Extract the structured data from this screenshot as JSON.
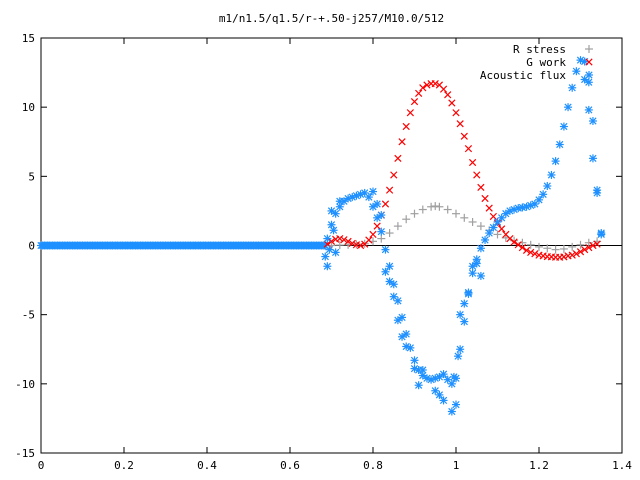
{
  "chart_data": {
    "type": "scatter",
    "title": "m1/n1.5/q1.5/r-+.50-j257/M10.0/512",
    "xlabel": "",
    "ylabel": "",
    "xlim": [
      0,
      1.4
    ],
    "ylim": [
      -15,
      15
    ],
    "x_ticks": [
      0,
      0.2,
      0.4,
      0.6,
      0.8,
      1,
      1.2,
      1.4
    ],
    "y_ticks": [
      -15,
      -10,
      -5,
      0,
      5,
      10,
      15
    ],
    "x_tick_labels": [
      "0",
      "0.2",
      "0.4",
      "0.6",
      "0.8",
      "1",
      "1.2",
      "1.4"
    ],
    "y_tick_labels": [
      "-15",
      "-10",
      "-5",
      "0",
      "5",
      "10",
      "15"
    ],
    "grid": false,
    "legend_position": "top-right",
    "series": [
      {
        "name": "R stress",
        "marker": "+",
        "color": "#a0a0a0",
        "points": [
          [
            0.7,
            0.0
          ],
          [
            0.72,
            0.03
          ],
          [
            0.74,
            0.05
          ],
          [
            0.76,
            0.08
          ],
          [
            0.78,
            0.13
          ],
          [
            0.8,
            0.3
          ],
          [
            0.82,
            0.5
          ],
          [
            0.84,
            0.9
          ],
          [
            0.86,
            1.4
          ],
          [
            0.88,
            1.9
          ],
          [
            0.9,
            2.3
          ],
          [
            0.92,
            2.6
          ],
          [
            0.94,
            2.8
          ],
          [
            0.95,
            2.85
          ],
          [
            0.96,
            2.8
          ],
          [
            0.98,
            2.6
          ],
          [
            1.0,
            2.3
          ],
          [
            1.02,
            2.0
          ],
          [
            1.04,
            1.7
          ],
          [
            1.06,
            1.4
          ],
          [
            1.08,
            1.1
          ],
          [
            1.1,
            0.8
          ],
          [
            1.12,
            0.55
          ],
          [
            1.14,
            0.35
          ],
          [
            1.16,
            0.2
          ],
          [
            1.18,
            0.05
          ],
          [
            1.2,
            -0.1
          ],
          [
            1.22,
            -0.2
          ],
          [
            1.24,
            -0.3
          ],
          [
            1.26,
            -0.25
          ],
          [
            1.28,
            -0.1
          ],
          [
            1.3,
            0.05
          ],
          [
            1.32,
            0.2
          ],
          [
            1.34,
            0.3
          ]
        ]
      },
      {
        "name": "G work",
        "marker": "x",
        "color": "#ff0000",
        "points": [
          [
            0.69,
            0.1
          ],
          [
            0.7,
            0.3
          ],
          [
            0.71,
            0.45
          ],
          [
            0.72,
            0.5
          ],
          [
            0.73,
            0.42
          ],
          [
            0.74,
            0.3
          ],
          [
            0.75,
            0.15
          ],
          [
            0.76,
            0.05
          ],
          [
            0.77,
            0.0
          ],
          [
            0.78,
            0.1
          ],
          [
            0.79,
            0.4
          ],
          [
            0.8,
            0.8
          ],
          [
            0.81,
            1.4
          ],
          [
            0.82,
            2.2
          ],
          [
            0.83,
            3.0
          ],
          [
            0.84,
            4.0
          ],
          [
            0.85,
            5.1
          ],
          [
            0.86,
            6.3
          ],
          [
            0.87,
            7.5
          ],
          [
            0.88,
            8.6
          ],
          [
            0.89,
            9.6
          ],
          [
            0.9,
            10.4
          ],
          [
            0.91,
            11.0
          ],
          [
            0.92,
            11.4
          ],
          [
            0.93,
            11.6
          ],
          [
            0.94,
            11.7
          ],
          [
            0.95,
            11.7
          ],
          [
            0.96,
            11.6
          ],
          [
            0.97,
            11.3
          ],
          [
            0.98,
            10.9
          ],
          [
            0.99,
            10.3
          ],
          [
            1.0,
            9.6
          ],
          [
            1.01,
            8.8
          ],
          [
            1.02,
            7.9
          ],
          [
            1.03,
            7.0
          ],
          [
            1.04,
            6.0
          ],
          [
            1.05,
            5.1
          ],
          [
            1.06,
            4.2
          ],
          [
            1.07,
            3.4
          ],
          [
            1.08,
            2.7
          ],
          [
            1.09,
            2.1
          ],
          [
            1.1,
            1.6
          ],
          [
            1.11,
            1.2
          ],
          [
            1.12,
            0.8
          ],
          [
            1.13,
            0.5
          ],
          [
            1.14,
            0.25
          ],
          [
            1.15,
            0.05
          ],
          [
            1.16,
            -0.15
          ],
          [
            1.17,
            -0.35
          ],
          [
            1.18,
            -0.5
          ],
          [
            1.19,
            -0.6
          ],
          [
            1.2,
            -0.7
          ],
          [
            1.21,
            -0.75
          ],
          [
            1.22,
            -0.8
          ],
          [
            1.23,
            -0.82
          ],
          [
            1.24,
            -0.85
          ],
          [
            1.25,
            -0.85
          ],
          [
            1.26,
            -0.82
          ],
          [
            1.27,
            -0.75
          ],
          [
            1.28,
            -0.7
          ],
          [
            1.29,
            -0.6
          ],
          [
            1.3,
            -0.45
          ],
          [
            1.31,
            -0.3
          ],
          [
            1.32,
            -0.15
          ],
          [
            1.33,
            0.0
          ],
          [
            1.34,
            0.1
          ]
        ]
      },
      {
        "name": "Acoustic flux",
        "marker": "*",
        "color": "#1e90ff",
        "points": [
          [
            0.69,
            0.5
          ],
          [
            0.7,
            1.5
          ],
          [
            0.71,
            2.3
          ],
          [
            0.72,
            2.8
          ],
          [
            0.73,
            3.2
          ],
          [
            0.74,
            3.4
          ],
          [
            0.75,
            3.5
          ],
          [
            0.76,
            3.6
          ],
          [
            0.77,
            3.7
          ],
          [
            0.78,
            3.8
          ],
          [
            0.79,
            3.5
          ],
          [
            0.8,
            2.8
          ],
          [
            0.81,
            2.0
          ],
          [
            0.82,
            1.0
          ],
          [
            0.83,
            -0.3
          ],
          [
            0.84,
            -1.5
          ],
          [
            0.85,
            -2.8
          ],
          [
            0.86,
            -4.0
          ],
          [
            0.87,
            -5.2
          ],
          [
            0.88,
            -6.4
          ],
          [
            0.89,
            -7.4
          ],
          [
            0.9,
            -8.3
          ],
          [
            0.91,
            -9.0
          ],
          [
            0.92,
            -9.4
          ],
          [
            0.93,
            -9.6
          ],
          [
            0.94,
            -9.7
          ],
          [
            0.95,
            -9.6
          ],
          [
            0.96,
            -9.5
          ],
          [
            0.97,
            -9.3
          ],
          [
            0.98,
            -9.7
          ],
          [
            0.99,
            -10.0
          ],
          [
            1.0,
            -9.6
          ],
          [
            1.01,
            -7.5
          ],
          [
            1.02,
            -5.5
          ],
          [
            1.03,
            -3.5
          ],
          [
            1.04,
            -2.0
          ],
          [
            1.05,
            -1.0
          ],
          [
            1.06,
            -0.2
          ],
          [
            1.07,
            0.4
          ],
          [
            1.08,
            0.9
          ],
          [
            1.09,
            1.3
          ],
          [
            1.1,
            1.7
          ],
          [
            1.11,
            2.0
          ],
          [
            1.12,
            2.3
          ],
          [
            1.13,
            2.5
          ],
          [
            1.14,
            2.6
          ],
          [
            1.15,
            2.7
          ],
          [
            1.16,
            2.75
          ],
          [
            1.17,
            2.8
          ],
          [
            1.18,
            2.9
          ],
          [
            1.19,
            3.0
          ],
          [
            1.2,
            3.3
          ],
          [
            1.21,
            3.7
          ],
          [
            1.22,
            4.3
          ],
          [
            1.23,
            5.1
          ],
          [
            1.24,
            6.1
          ],
          [
            1.25,
            7.3
          ],
          [
            1.26,
            8.6
          ],
          [
            1.27,
            10.0
          ],
          [
            1.28,
            11.4
          ],
          [
            1.29,
            12.6
          ],
          [
            1.3,
            13.4
          ],
          [
            1.31,
            13.3
          ],
          [
            1.32,
            11.8
          ],
          [
            1.33,
            9.0
          ],
          [
            1.34,
            4.0
          ],
          [
            1.35,
            0.8
          ],
          [
            0.685,
            -0.8
          ],
          [
            0.69,
            -1.5
          ],
          [
            0.695,
            -0.3
          ],
          [
            0.7,
            2.5
          ],
          [
            0.705,
            1.1
          ],
          [
            0.71,
            -0.5
          ],
          [
            0.72,
            3.2
          ],
          [
            0.8,
            3.9
          ],
          [
            0.81,
            3.0
          ],
          [
            0.82,
            2.2
          ],
          [
            0.83,
            -1.9
          ],
          [
            0.84,
            -2.6
          ],
          [
            0.85,
            -3.7
          ],
          [
            0.86,
            -5.4
          ],
          [
            0.87,
            -6.6
          ],
          [
            0.88,
            -7.3
          ],
          [
            0.9,
            -8.9
          ],
          [
            0.91,
            -10.1
          ],
          [
            0.92,
            -9.0
          ],
          [
            0.95,
            -10.5
          ],
          [
            0.96,
            -10.8
          ],
          [
            0.97,
            -11.2
          ],
          [
            0.99,
            -12.0
          ],
          [
            1.0,
            -11.5
          ],
          [
            0.995,
            -9.5
          ],
          [
            1.005,
            -8.0
          ],
          [
            1.01,
            -5.0
          ],
          [
            1.02,
            -4.2
          ],
          [
            1.03,
            -3.4
          ],
          [
            1.04,
            -1.5
          ],
          [
            1.05,
            -1.3
          ],
          [
            1.06,
            -2.2
          ],
          [
            1.33,
            6.3
          ],
          [
            1.34,
            3.8
          ],
          [
            1.35,
            0.9
          ],
          [
            1.32,
            9.8
          ],
          [
            1.31,
            12.0
          ]
        ]
      }
    ]
  }
}
